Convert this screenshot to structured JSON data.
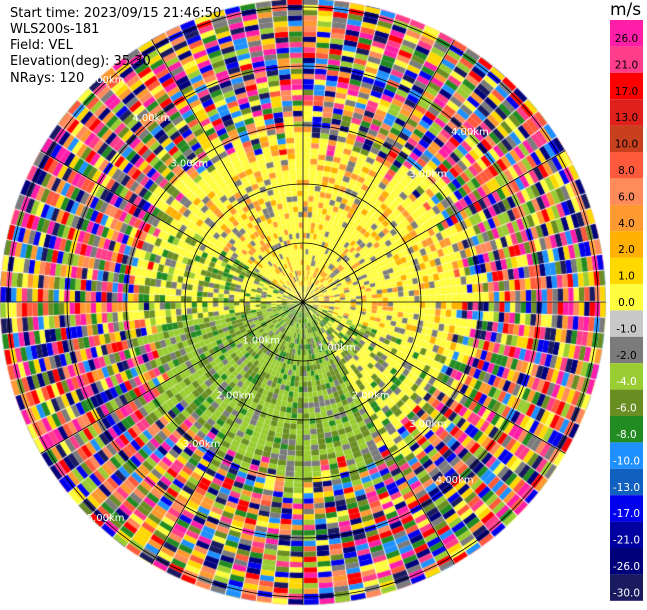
{
  "header": {
    "start_time": "Start time: 2023/09/15 21:46:50",
    "instrument": "WLS200s-181",
    "field": "Field: VEL",
    "elevation": "Elevation(deg): 35.30",
    "nrays": "NRays: 120"
  },
  "chart_data": {
    "type": "heatmap",
    "projection": "polar-ppi",
    "field": "VEL",
    "units": "m/s",
    "n_rays": 120,
    "range_rings_km": [
      1.0,
      2.0,
      3.0,
      4.0,
      5.0
    ],
    "range_ring_labels": [
      "1.00km",
      "1.00km",
      "2.00km",
      "2.00km",
      "3.00km",
      "3.00km",
      "3.00km",
      "3.00km",
      "4.00km",
      "4.00km",
      "4.00km",
      "5.00km",
      "5.00km"
    ],
    "colorbar": {
      "title": "m/s",
      "ticks": [
        "26.0",
        "21.0",
        "17.0",
        "13.0",
        "10.0",
        "8.0",
        "6.0",
        "4.0",
        "2.0",
        "1.0",
        "0.0",
        "-1.0",
        "-2.0",
        "-4.0",
        "-6.0",
        "-8.0",
        "-10.0",
        "-13.0",
        "-17.0",
        "-21.0",
        "-26.0",
        "-30.0"
      ],
      "colors": [
        "#ff1ea8",
        "#ff3d8a",
        "#ff0000",
        "#e0201b",
        "#c8401e",
        "#ff5a3c",
        "#ff8a5a",
        "#ff9a30",
        "#ffb000",
        "#ffd800",
        "#fffd3d",
        "#c8c8c8",
        "#7b7b7b",
        "#9acd32",
        "#6b8e23",
        "#228b22",
        "#1e90ff",
        "#1060c0",
        "#0000ee",
        "#0000a0",
        "#00007a",
        "#1a1a60"
      ]
    },
    "pattern": "inner region (<~2.7km): positive velocities (yellow/orange) to north-east and east, negative velocities (olive/green) to south-west; outer region: noisy multicolour returns"
  }
}
